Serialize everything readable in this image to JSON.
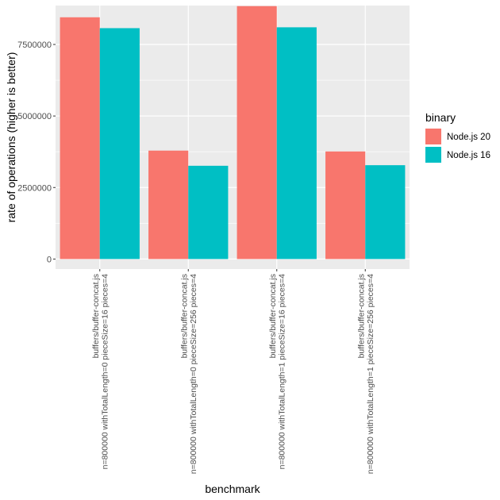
{
  "chart_data": {
    "type": "bar",
    "title": "",
    "xlabel": "benchmark",
    "ylabel": "rate of operations (higher is better)",
    "ylim": [
      -350000,
      8860000
    ],
    "yticks": [
      0,
      2500000,
      5000000,
      7500000
    ],
    "ytick_labels": [
      "0",
      "2500000",
      "5000000",
      "7500000"
    ],
    "grid": true,
    "legend_title": "binary",
    "legend_position": "right",
    "categories": [
      [
        "buffers/buffer-concat.js",
        "n=800000 withTotalLength=0 pieceSize=16 pieces=4"
      ],
      [
        "buffers/buffer-concat.js",
        "n=800000 withTotalLength=0 pieceSize=256 pieces=4"
      ],
      [
        "buffers/buffer-concat.js",
        "n=800000 withTotalLength=1 pieceSize=16 pieces=4"
      ],
      [
        "buffers/buffer-concat.js",
        "n=800000 withTotalLength=1 pieceSize=256 pieces=4"
      ]
    ],
    "series": [
      {
        "name": "Node.js 20",
        "color": "#F8766D",
        "values": [
          8450000,
          3790000,
          8840000,
          3760000
        ]
      },
      {
        "name": "Node.js 16",
        "color": "#00BFC4",
        "values": [
          8070000,
          3260000,
          8100000,
          3280000
        ]
      }
    ]
  }
}
